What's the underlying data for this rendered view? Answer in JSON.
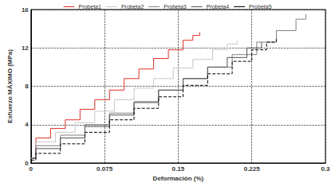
{
  "chart_data": {
    "type": "line",
    "x_label": "Deformación (%)",
    "y_label": "Esfuerzo MÁXIMO (MPa)",
    "xlim": [
      0,
      0.3
    ],
    "xticks": [
      0,
      0.075,
      0.15,
      0.225,
      0.3
    ],
    "ylim": [
      0,
      16
    ],
    "yticks": [
      0,
      4,
      8,
      12,
      16
    ],
    "grid": true,
    "legend": "top",
    "series": [
      {
        "name": "Probeta1",
        "color": "#e0302a",
        "line_style": "solid",
        "x": [
          0,
          0.005,
          0.02,
          0.035,
          0.05,
          0.065,
          0.08,
          0.095,
          0.11,
          0.125,
          0.14,
          0.155,
          0.165,
          0.172
        ],
        "values": [
          0.5,
          2.6,
          3.6,
          4.5,
          5.6,
          6.6,
          7.6,
          8.8,
          9.8,
          10.9,
          11.8,
          12.8,
          13.3,
          13.6
        ]
      },
      {
        "name": "Probeta2",
        "color": "#c8c8c8",
        "line_style": "solid",
        "x": [
          0,
          0.005,
          0.025,
          0.045,
          0.065,
          0.085,
          0.105,
          0.125,
          0.145,
          0.165,
          0.185,
          0.2,
          0.21
        ],
        "values": [
          0.5,
          2.2,
          3.2,
          4.2,
          5.4,
          6.6,
          7.8,
          8.8,
          9.9,
          10.8,
          11.8,
          12.4,
          12.8
        ]
      },
      {
        "name": "Probeta3",
        "color": "#808080",
        "line_style": "solid",
        "x": [
          0,
          0.005,
          0.03,
          0.055,
          0.08,
          0.105,
          0.13,
          0.155,
          0.18,
          0.205,
          0.23,
          0.25,
          0.27,
          0.28
        ],
        "values": [
          0.5,
          1.8,
          2.9,
          4.0,
          5.2,
          6.4,
          7.6,
          8.8,
          10.0,
          11.3,
          12.6,
          13.8,
          15.0,
          15.5
        ]
      },
      {
        "name": "Probeta4",
        "color": "#505050",
        "line_style": "solid",
        "x": [
          0,
          0.005,
          0.03,
          0.055,
          0.08,
          0.105,
          0.13,
          0.155,
          0.18,
          0.2,
          0.22,
          0.235
        ],
        "values": [
          0.5,
          1.5,
          2.6,
          3.8,
          5.0,
          6.3,
          7.6,
          8.8,
          10.0,
          11.0,
          12.0,
          12.6
        ]
      },
      {
        "name": "Probeta5",
        "color": "#000000",
        "line_style": "dashed",
        "x": [
          0,
          0.005,
          0.03,
          0.055,
          0.08,
          0.105,
          0.13,
          0.155,
          0.18,
          0.205,
          0.225,
          0.24,
          0.25
        ],
        "values": [
          0.3,
          1.0,
          2.0,
          3.2,
          4.5,
          5.7,
          6.9,
          8.1,
          9.3,
          10.6,
          11.8,
          12.6,
          13.0
        ]
      }
    ]
  }
}
